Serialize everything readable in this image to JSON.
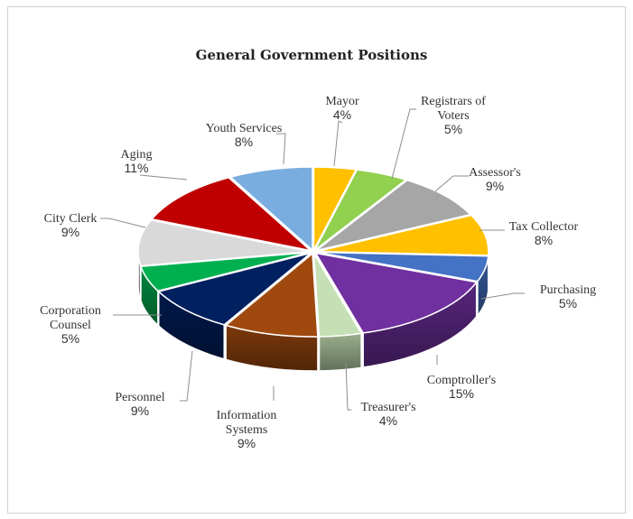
{
  "chart_data": {
    "type": "pie",
    "title": "General Government Positions",
    "style": "3d-exploded-pie",
    "slices": [
      {
        "name": "Mayor",
        "label_lines": [
          "Mayor"
        ],
        "value": 4,
        "pct_label": "4%",
        "color": "#ffc000"
      },
      {
        "name": "Registrars of Voters",
        "label_lines": [
          "Registrars of",
          "Voters"
        ],
        "value": 5,
        "pct_label": "5%",
        "color": "#92d050"
      },
      {
        "name": "Assessor's",
        "label_lines": [
          "Assessor's"
        ],
        "value": 9,
        "pct_label": "9%",
        "color": "#a6a6a6"
      },
      {
        "name": "Tax Collector",
        "label_lines": [
          "Tax Collector"
        ],
        "value": 8,
        "pct_label": "8%",
        "color": "#ffc000"
      },
      {
        "name": "Purchasing",
        "label_lines": [
          "Purchasing"
        ],
        "value": 5,
        "pct_label": "5%",
        "color": "#4472c4"
      },
      {
        "name": "Comptroller's",
        "label_lines": [
          "Comptroller's"
        ],
        "value": 15,
        "pct_label": "15%",
        "color": "#7030a0"
      },
      {
        "name": "Treasurer's",
        "label_lines": [
          "Treasurer's"
        ],
        "value": 4,
        "pct_label": "4%",
        "color": "#c5e0b4"
      },
      {
        "name": "Information Systems",
        "label_lines": [
          "Information",
          "Systems"
        ],
        "value": 9,
        "pct_label": "9%",
        "color": "#a0490f"
      },
      {
        "name": "Personnel",
        "label_lines": [
          "Personnel"
        ],
        "value": 9,
        "pct_label": "9%",
        "color": "#002060"
      },
      {
        "name": "Corporation Counsel",
        "label_lines": [
          "Corporation",
          "Counsel"
        ],
        "value": 5,
        "pct_label": "5%",
        "color": "#00b050"
      },
      {
        "name": "City Clerk",
        "label_lines": [
          "City Clerk"
        ],
        "value": 9,
        "pct_label": "9%",
        "color": "#d9d9d9"
      },
      {
        "name": "Aging",
        "label_lines": [
          "Aging"
        ],
        "value": 11,
        "pct_label": "11%",
        "color": "#c00000"
      },
      {
        "name": "Youth Services",
        "label_lines": [
          "Youth Services"
        ],
        "value": 8,
        "pct_label": "8%",
        "color": "#7aaddf"
      }
    ]
  }
}
